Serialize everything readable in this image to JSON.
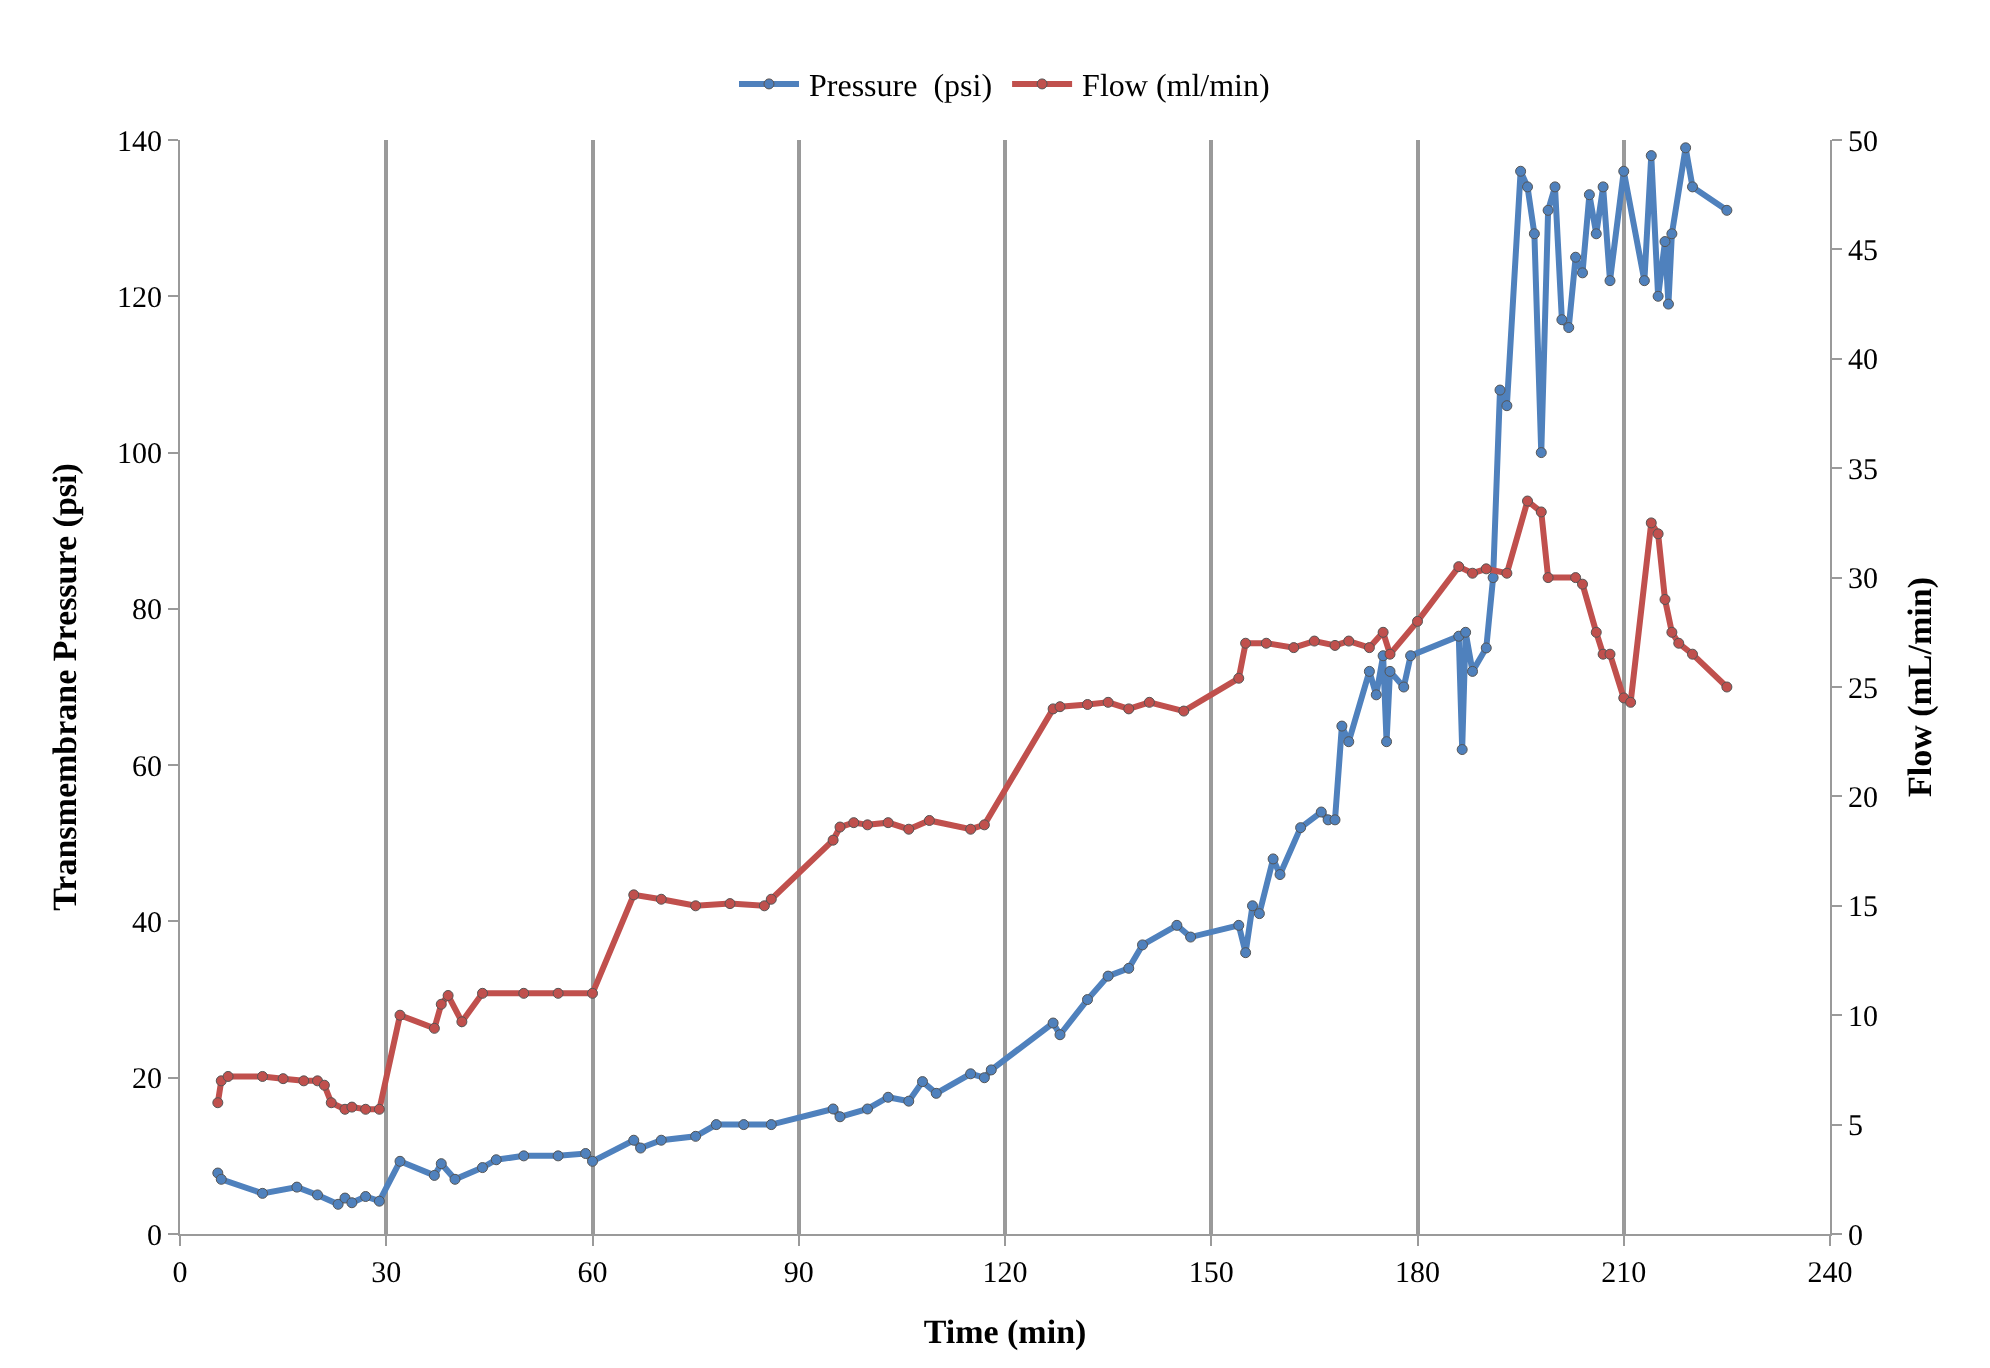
{
  "chart_data": {
    "type": "line",
    "xlabel": "Time (min)",
    "ylabel": "Transmembrane Pressure (psi)",
    "y2label": "Flow (mL/min)",
    "xlim": [
      0,
      240
    ],
    "xticks": [
      0,
      30,
      60,
      90,
      120,
      150,
      180,
      210,
      240
    ],
    "ylim": [
      0,
      140
    ],
    "yticks": [
      0,
      20,
      40,
      60,
      80,
      100,
      120,
      140
    ],
    "y2lim": [
      0,
      50
    ],
    "y2ticks": [
      0,
      5,
      10,
      15,
      20,
      25,
      30,
      35,
      40,
      45,
      50
    ],
    "grid": "x",
    "legend": "top",
    "marker": "circle",
    "line_style": "solid",
    "series": [
      {
        "name": "Pressure  (psi)",
        "color": "#4f81bd",
        "x": [
          5.5,
          6,
          12,
          17,
          20,
          23,
          24,
          25,
          27,
          29,
          32,
          37,
          38,
          40,
          44,
          46,
          50,
          55,
          59,
          60,
          66,
          67,
          70,
          75,
          78,
          82,
          86,
          95,
          96,
          100,
          103,
          106,
          108,
          110,
          115,
          117,
          118,
          127,
          128,
          132,
          135,
          138,
          140,
          145,
          147,
          154,
          155,
          156,
          157,
          159,
          160,
          163,
          166,
          167,
          168,
          169,
          170,
          173,
          174,
          175,
          175.5,
          176,
          178,
          179,
          186,
          186.5,
          187,
          188,
          190,
          191,
          192,
          193,
          195,
          196,
          197,
          198,
          199,
          200,
          201,
          202,
          203,
          204,
          205,
          206,
          207,
          208,
          210,
          213,
          214,
          215,
          216,
          216.5,
          217,
          219,
          220,
          225
        ],
        "values": [
          7.8,
          7,
          5.2,
          6,
          5,
          3.8,
          4.6,
          4,
          4.8,
          4.2,
          9.3,
          7.5,
          9,
          7,
          8.5,
          9.5,
          10,
          10,
          10.3,
          9.3,
          12,
          11,
          12,
          12.5,
          14,
          14,
          14,
          16,
          15,
          16,
          17.5,
          17,
          19.5,
          18,
          20.5,
          20,
          21,
          27,
          25.5,
          30,
          33,
          34,
          37,
          39.5,
          38,
          39.5,
          36,
          42,
          41,
          48,
          46,
          52,
          54,
          53,
          53,
          65,
          63,
          72,
          69,
          74,
          63,
          72,
          70,
          74,
          76.5,
          62,
          77,
          72,
          75,
          84,
          108,
          106,
          136,
          134,
          128,
          100,
          131,
          134,
          117,
          116,
          125,
          123,
          133,
          128,
          134,
          122,
          136,
          122,
          138,
          120,
          127,
          119,
          128,
          139,
          134,
          131
        ]
      },
      {
        "name": "Flow (ml/min)",
        "color": "#c0504d",
        "axis": "y2",
        "x": [
          5.5,
          6,
          7,
          12,
          15,
          18,
          20,
          21,
          22,
          24,
          25,
          27,
          29,
          32,
          37,
          38,
          39,
          41,
          44,
          50,
          55,
          60,
          66,
          70,
          75,
          80,
          85,
          86,
          95,
          96,
          98,
          100,
          103,
          106,
          109,
          115,
          117,
          127,
          128,
          132,
          135,
          138,
          141,
          146,
          154,
          155,
          158,
          162,
          165,
          168,
          170,
          173,
          175,
          176,
          180,
          186,
          188,
          190,
          193,
          196,
          198,
          199,
          203,
          204,
          206,
          207,
          208,
          210,
          211,
          214,
          215,
          216,
          217,
          218,
          220,
          225
        ],
        "values": [
          6,
          7,
          7.2,
          7.2,
          7.1,
          7,
          7,
          6.8,
          6,
          5.7,
          5.8,
          5.7,
          5.7,
          10,
          9.4,
          10.5,
          10.9,
          9.7,
          11,
          11,
          11,
          11,
          15.5,
          15.3,
          15,
          15.1,
          15,
          15.3,
          18,
          18.6,
          18.8,
          18.7,
          18.8,
          18.5,
          18.9,
          18.5,
          18.7,
          24,
          24.1,
          24.2,
          24.3,
          24,
          24.3,
          23.9,
          25.4,
          27,
          27,
          26.8,
          27.1,
          26.9,
          27.1,
          26.8,
          27.5,
          26.5,
          28,
          30.5,
          30.2,
          30.4,
          30.2,
          33.5,
          33,
          30,
          30,
          29.7,
          27.5,
          26.5,
          26.5,
          24.5,
          24.3,
          32.5,
          32,
          29,
          27.5,
          27,
          26.5,
          25
        ]
      }
    ]
  }
}
